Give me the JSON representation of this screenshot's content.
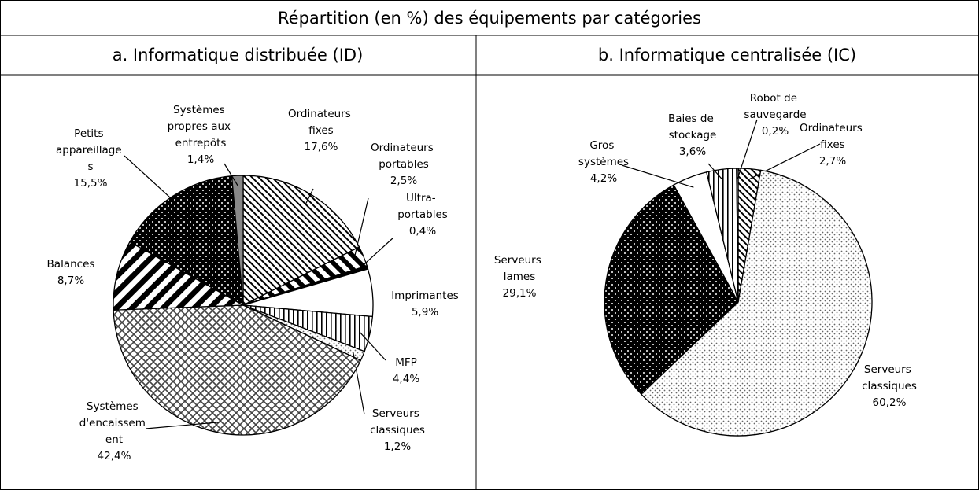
{
  "header": {
    "title": "Répartition (en %) des équipements par catégories"
  },
  "chart_data": [
    {
      "type": "pie",
      "title": "a. Informatique distribuée (ID)",
      "categories": [
        "Ordinateurs\nfixes",
        "Ordinateurs\nportables",
        "Ultra-\nportables",
        "Imprimantes",
        "MFP",
        "Serveurs\nclassiques",
        "Systèmes\nd'encaissem\nent",
        "Balances",
        "Petits\nappareillage\ns",
        "Systèmes\npropres aux\nentrepôts"
      ],
      "values": [
        17.6,
        2.5,
        0.4,
        5.9,
        4.4,
        1.2,
        42.4,
        8.7,
        15.5,
        1.4
      ],
      "value_labels": [
        "17,6%",
        "2,5%",
        "0,4%",
        "5,9%",
        "4,4%",
        "1,2%",
        "42,4%",
        "8,7%",
        "15,5%",
        "1,4%"
      ],
      "patterns": [
        "hatch",
        "wide-hatch",
        "black",
        "white",
        "vertical",
        "light-dots",
        "weave",
        "wide-hatch-reverse",
        "dark-dots",
        "gray"
      ]
    },
    {
      "type": "pie",
      "title": "b. Informatique centralisée (IC)",
      "categories": [
        "Ordinateurs\nfixes",
        "Serveurs\nclassiques",
        "Serveurs\nlames",
        "Gros\nsystèmes",
        "Baies de\nstockage",
        "Robot de\nsauvegarde"
      ],
      "values": [
        2.7,
        60.2,
        29.1,
        4.2,
        3.6,
        0.2
      ],
      "value_labels": [
        "2,7%",
        "60,2%",
        "29,1%",
        "4,2%",
        "3,6%",
        "0,2%"
      ],
      "patterns": [
        "hatch",
        "light-dots",
        "dark-dots",
        "white",
        "vertical",
        "gray-light"
      ]
    }
  ]
}
